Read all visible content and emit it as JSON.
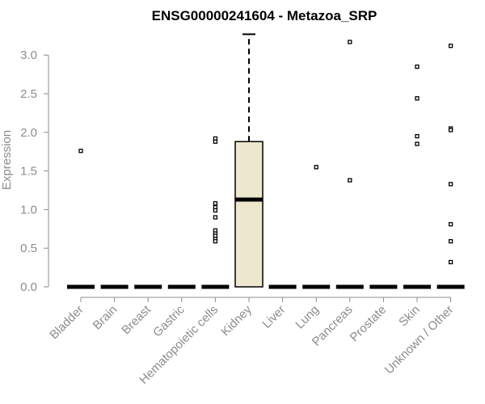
{
  "chart_data": {
    "type": "box",
    "title": "ENSG00000241604 - Metazoa_SRP",
    "xlabel": "",
    "ylabel": "Expression",
    "ylim": [
      0,
      3.3
    ],
    "yticks": [
      "0.0",
      "0.5",
      "1.0",
      "1.5",
      "2.0",
      "2.5",
      "3.0"
    ],
    "grid": false,
    "box_color": "#ede7cd",
    "categories": [
      "Bladder",
      "Brain",
      "Breast",
      "Gastric",
      "Hematopoietic cells",
      "Kidney",
      "Liver",
      "Lung",
      "Pancreas",
      "Prostate",
      "Skin",
      "Unknown / Other"
    ],
    "boxes": [
      {
        "category": "Bladder",
        "min": 0,
        "q1": 0,
        "median": 0,
        "q3": 0,
        "max": 0,
        "outliers": [
          1.76
        ]
      },
      {
        "category": "Brain",
        "min": 0,
        "q1": 0,
        "median": 0,
        "q3": 0,
        "max": 0,
        "outliers": []
      },
      {
        "category": "Breast",
        "min": 0,
        "q1": 0,
        "median": 0,
        "q3": 0,
        "max": 0,
        "outliers": []
      },
      {
        "category": "Gastric",
        "min": 0,
        "q1": 0,
        "median": 0,
        "q3": 0,
        "max": 0,
        "outliers": []
      },
      {
        "category": "Hematopoietic cells",
        "min": 0,
        "q1": 0,
        "median": 0,
        "q3": 0,
        "max": 0,
        "outliers": [
          1.92,
          1.88,
          1.08,
          1.03,
          0.99,
          0.9,
          0.73,
          0.69,
          0.66,
          0.62,
          0.59
        ]
      },
      {
        "category": "Kidney",
        "min": 0,
        "q1": 0,
        "median": 1.13,
        "q3": 1.88,
        "max": 3.27,
        "outliers": []
      },
      {
        "category": "Liver",
        "min": 0,
        "q1": 0,
        "median": 0,
        "q3": 0,
        "max": 0,
        "outliers": []
      },
      {
        "category": "Lung",
        "min": 0,
        "q1": 0,
        "median": 0,
        "q3": 0,
        "max": 0,
        "outliers": [
          1.55
        ]
      },
      {
        "category": "Pancreas",
        "min": 0,
        "q1": 0,
        "median": 0,
        "q3": 0,
        "max": 0,
        "outliers": [
          3.17,
          1.38
        ]
      },
      {
        "category": "Prostate",
        "min": 0,
        "q1": 0,
        "median": 0,
        "q3": 0,
        "max": 0,
        "outliers": []
      },
      {
        "category": "Skin",
        "min": 0,
        "q1": 0,
        "median": 0,
        "q3": 0,
        "max": 0,
        "outliers": [
          2.85,
          2.44,
          1.95,
          1.85
        ]
      },
      {
        "category": "Unknown / Other",
        "min": 0,
        "q1": 0,
        "median": 0,
        "q3": 0,
        "max": 0,
        "outliers": [
          3.12,
          2.05,
          2.03,
          1.33,
          0.81,
          0.59,
          0.32
        ]
      }
    ]
  }
}
